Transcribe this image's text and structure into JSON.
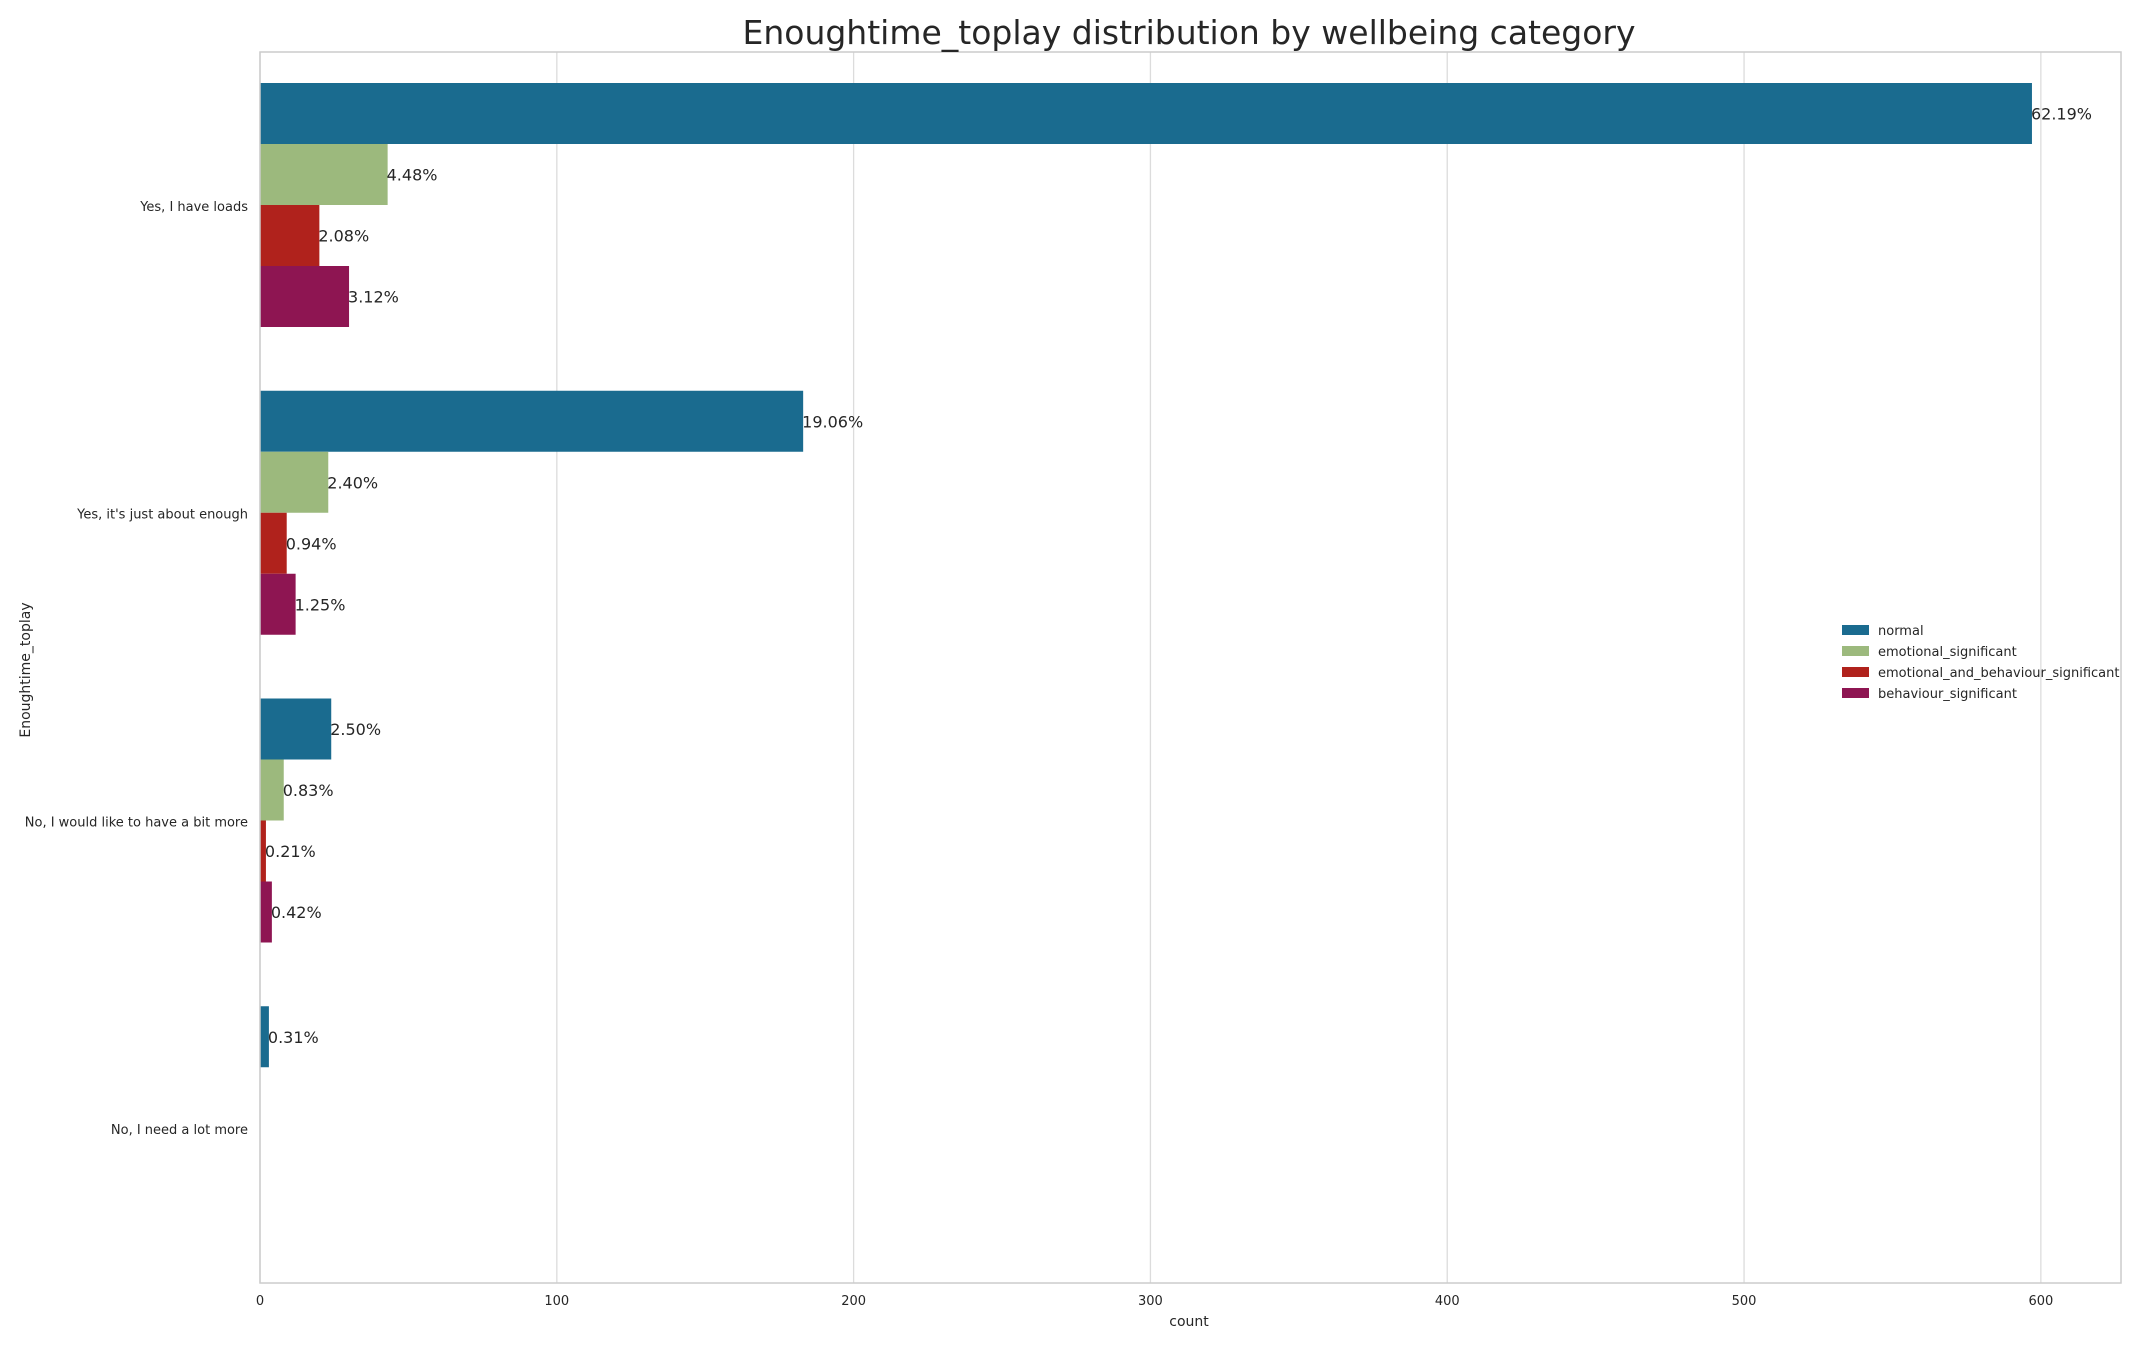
{
  "chart_data": {
    "type": "bar",
    "orientation": "horizontal",
    "title": "Enoughtime_toplay distribution by wellbeing category",
    "xlabel": "count",
    "ylabel": "Enoughtime_toplay",
    "xlim": [
      0,
      627
    ],
    "xticks": [
      "0",
      "100",
      "200",
      "300",
      "400",
      "500",
      "600"
    ],
    "xtick_values": [
      0,
      100,
      200,
      300,
      400,
      500,
      600
    ],
    "grid": true,
    "legend_position": "center-right",
    "categories": [
      "Yes, I have loads",
      "Yes, it's just about enough",
      "No, I would like to have a bit more",
      "No, I need a lot more"
    ],
    "series": [
      {
        "name": "normal",
        "color": "#1a6b8f",
        "values": [
          597,
          183,
          24,
          3
        ],
        "labels": [
          "62.19%",
          "19.06%",
          "2.50%",
          "0.31%"
        ]
      },
      {
        "name": "emotional_significant",
        "color": "#9cb97d",
        "values": [
          43,
          23,
          8,
          0
        ],
        "labels": [
          "4.48%",
          "2.40%",
          "0.83%",
          ""
        ]
      },
      {
        "name": "emotional_and_behaviour_significant",
        "color": "#b0221c",
        "values": [
          20,
          9,
          2,
          0
        ],
        "labels": [
          "2.08%",
          "0.94%",
          "0.21%",
          ""
        ]
      },
      {
        "name": "behaviour_significant",
        "color": "#8e1552",
        "values": [
          30,
          12,
          4,
          0
        ],
        "labels": [
          "3.12%",
          "1.25%",
          "0.42%",
          ""
        ]
      }
    ]
  }
}
